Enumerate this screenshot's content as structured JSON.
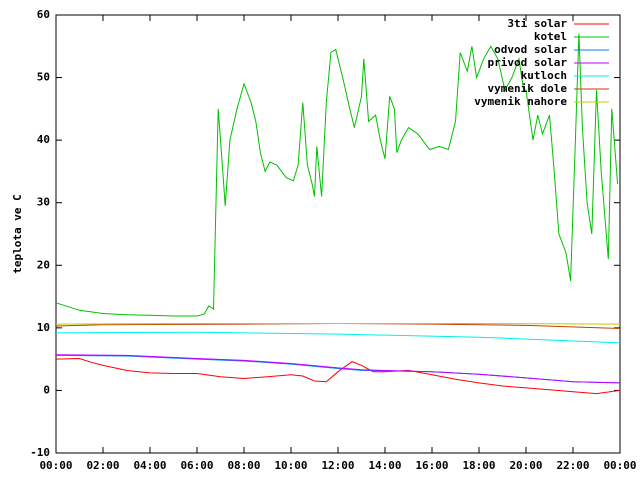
{
  "chart_data": {
    "type": "line",
    "ylabel": "teplota ve C",
    "xlim": [
      0,
      24
    ],
    "xticks": [
      {
        "value": 0,
        "label": "00:00"
      },
      {
        "value": 2,
        "label": "02:00"
      },
      {
        "value": 4,
        "label": "04:00"
      },
      {
        "value": 6,
        "label": "06:00"
      },
      {
        "value": 8,
        "label": "08:00"
      },
      {
        "value": 10,
        "label": "10:00"
      },
      {
        "value": 12,
        "label": "12:00"
      },
      {
        "value": 14,
        "label": "14:00"
      },
      {
        "value": 16,
        "label": "16:00"
      },
      {
        "value": 18,
        "label": "18:00"
      },
      {
        "value": 20,
        "label": "20:00"
      },
      {
        "value": 22,
        "label": "22:00"
      },
      {
        "value": 24,
        "label": "00:00"
      }
    ],
    "ylim": [
      -10,
      60
    ],
    "yticks": [
      -10,
      0,
      10,
      20,
      30,
      40,
      50,
      60
    ],
    "legend": "top-right",
    "series": [
      {
        "name": "3ti solar",
        "color": "#ff0000",
        "x": [
          0,
          1,
          1.5,
          2,
          3,
          4,
          5,
          6,
          7,
          8,
          9,
          10,
          10.5,
          11,
          11.5,
          12,
          12.6,
          13,
          13.5,
          14,
          15,
          16,
          17,
          18,
          19,
          20,
          21,
          22,
          23,
          24
        ],
        "values": [
          5,
          5.1,
          4.5,
          4,
          3.2,
          2.8,
          2.7,
          2.7,
          2.2,
          1.9,
          2.2,
          2.5,
          2.3,
          1.5,
          1.4,
          3,
          4.6,
          4,
          3,
          3,
          3.2,
          2.5,
          1.8,
          1.2,
          0.7,
          0.4,
          0.1,
          -0.2,
          -0.5,
          0
        ]
      },
      {
        "name": "kotel",
        "color": "#00c000",
        "x": [
          0,
          1,
          2,
          3,
          4,
          5,
          6,
          6.3,
          6.5,
          6.7,
          6.9,
          7.1,
          7.2,
          7.4,
          7.7,
          8.0,
          8.3,
          8.5,
          8.7,
          8.9,
          9.1,
          9.4,
          9.8,
          10.1,
          10.3,
          10.5,
          10.7,
          10.9,
          11.0,
          11.1,
          11.3,
          11.5,
          11.7,
          11.9,
          12.2,
          12.5,
          12.7,
          13.0,
          13.1,
          13.3,
          13.6,
          13.8,
          14.0,
          14.2,
          14.4,
          14.5,
          14.7,
          15.0,
          15.4,
          15.9,
          16.3,
          16.7,
          17.0,
          17.2,
          17.5,
          17.7,
          17.9,
          18.2,
          18.5,
          18.8,
          19.1,
          19.4,
          19.7,
          19.9,
          20.0,
          20.3,
          20.5,
          20.7,
          21.0,
          21.2,
          21.4,
          21.7,
          21.9,
          22.1,
          22.25,
          22.4,
          22.6,
          22.8,
          23.0,
          23.2,
          23.5,
          23.65,
          23.9
        ],
        "values": [
          14,
          12.8,
          12.3,
          12.1,
          12,
          11.9,
          11.9,
          12.2,
          13.5,
          13,
          45,
          35,
          29.5,
          40,
          45,
          49,
          46,
          43,
          38,
          35,
          36.5,
          36,
          34,
          33.5,
          36,
          46,
          36,
          33,
          31,
          39,
          31,
          46,
          54,
          54.5,
          50,
          45,
          42,
          47,
          53,
          43,
          44,
          40,
          37,
          47,
          45,
          38,
          40,
          42,
          41,
          38.5,
          39,
          38.5,
          43,
          54,
          51,
          55,
          50,
          53,
          55,
          53,
          48,
          50,
          53,
          48,
          48,
          40,
          44,
          41,
          44,
          35,
          25,
          22,
          17.5,
          40,
          57,
          42,
          30,
          25,
          48,
          35,
          21,
          45,
          33
        ]
      },
      {
        "name": "odvod solar",
        "color": "#0080ff",
        "x": [
          0,
          3,
          6,
          8,
          10,
          12,
          13,
          16,
          18,
          20,
          22,
          24
        ],
        "values": [
          5.6,
          5.5,
          5,
          4.7,
          4.2,
          3.5,
          3.2,
          3,
          2.6,
          2,
          1.4,
          1.2
        ]
      },
      {
        "name": "privod solar",
        "color": "#c000ff",
        "x": [
          0,
          3,
          6,
          8,
          10,
          12,
          13,
          16,
          18,
          20,
          22,
          24
        ],
        "values": [
          5.7,
          5.6,
          5.1,
          4.8,
          4.3,
          3.6,
          3.3,
          3,
          2.6,
          2,
          1.4,
          1.2
        ]
      },
      {
        "name": "kutloch",
        "color": "#00eeee",
        "x": [
          0,
          6,
          12,
          18,
          24
        ],
        "values": [
          9.2,
          9.3,
          9,
          8.5,
          7.6
        ]
      },
      {
        "name": "vymenik dole",
        "color": "#c04000",
        "x": [
          0,
          2,
          8,
          12,
          16,
          20,
          24
        ],
        "values": [
          10.3,
          10.5,
          10.6,
          10.7,
          10.6,
          10.4,
          9.9
        ]
      },
      {
        "name": "vymenik nahore",
        "color": "#c8c800",
        "x": [
          0,
          6,
          12,
          18,
          24
        ],
        "values": [
          10.6,
          10.7,
          10.7,
          10.7,
          10.6
        ]
      }
    ]
  }
}
